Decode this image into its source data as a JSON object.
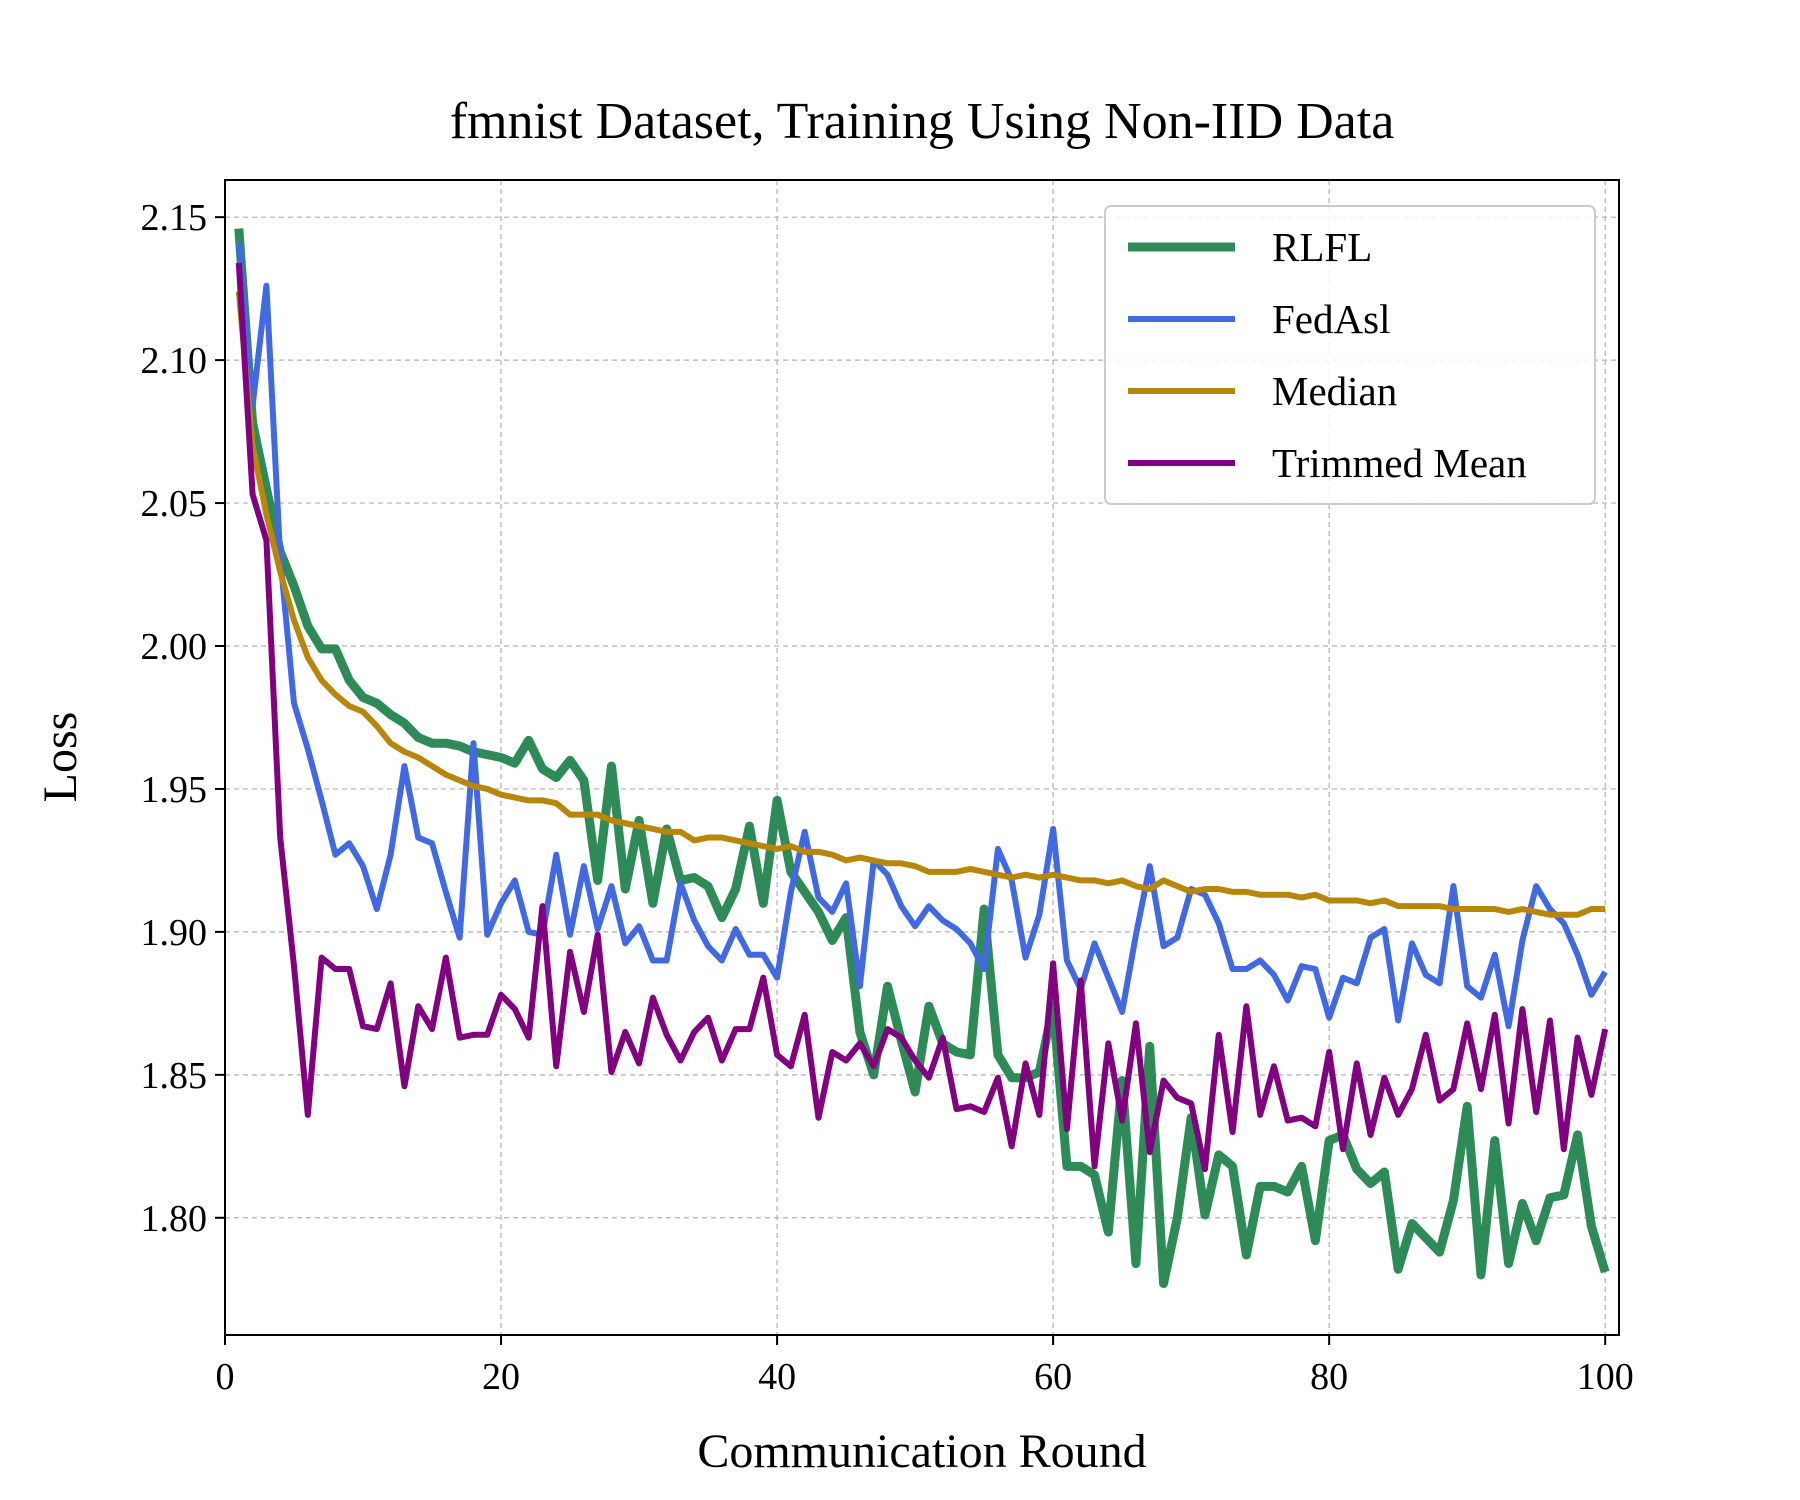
{
  "chart_data": {
    "type": "line",
    "title": "fmnist Dataset, Training Using Non-IID Data",
    "xlabel": "Communication Round",
    "ylabel": "Loss",
    "xlim": [
      0,
      101
    ],
    "ylim": [
      1.759,
      2.163
    ],
    "xticks": [
      0,
      20,
      40,
      60,
      80,
      100
    ],
    "yticks": [
      1.8,
      1.85,
      1.9,
      1.95,
      2.0,
      2.05,
      2.1,
      2.15
    ],
    "xtick_labels": [
      "0",
      "20",
      "40",
      "60",
      "80",
      "100"
    ],
    "ytick_labels": [
      "1.80",
      "1.85",
      "1.90",
      "1.95",
      "2.00",
      "2.05",
      "2.10",
      "2.15"
    ],
    "grid": true,
    "legend_position": "upper right",
    "x": [
      1,
      2,
      3,
      4,
      5,
      6,
      7,
      8,
      9,
      10,
      11,
      12,
      13,
      14,
      15,
      16,
      17,
      18,
      19,
      20,
      21,
      22,
      23,
      24,
      25,
      26,
      27,
      28,
      29,
      30,
      31,
      32,
      33,
      34,
      35,
      36,
      37,
      38,
      39,
      40,
      41,
      42,
      43,
      44,
      45,
      46,
      47,
      48,
      49,
      50,
      51,
      52,
      53,
      54,
      55,
      56,
      57,
      58,
      59,
      60,
      61,
      62,
      63,
      64,
      65,
      66,
      67,
      68,
      69,
      70,
      71,
      72,
      73,
      74,
      75,
      76,
      77,
      78,
      79,
      80,
      81,
      82,
      83,
      84,
      85,
      86,
      87,
      88,
      89,
      90,
      91,
      92,
      93,
      94,
      95,
      96,
      97,
      98,
      99,
      100
    ],
    "series": [
      {
        "name": "RLFL",
        "color": "#2e8b57",
        "width": 9,
        "values": [
          2.146,
          2.078,
          2.055,
          2.033,
          2.021,
          2.007,
          1.999,
          1.999,
          1.988,
          1.982,
          1.98,
          1.976,
          1.973,
          1.968,
          1.966,
          1.966,
          1.965,
          1.963,
          1.962,
          1.961,
          1.959,
          1.967,
          1.957,
          1.954,
          1.96,
          1.953,
          1.918,
          1.958,
          1.915,
          1.939,
          1.91,
          1.936,
          1.918,
          1.919,
          1.916,
          1.905,
          1.915,
          1.937,
          1.91,
          1.946,
          1.921,
          1.914,
          1.907,
          1.897,
          1.905,
          1.865,
          1.85,
          1.881,
          1.862,
          1.844,
          1.874,
          1.861,
          1.858,
          1.857,
          1.908,
          1.857,
          1.849,
          1.849,
          1.851,
          1.874,
          1.818,
          1.818,
          1.815,
          1.795,
          1.848,
          1.784,
          1.86,
          1.777,
          1.8,
          1.835,
          1.801,
          1.822,
          1.818,
          1.787,
          1.811,
          1.811,
          1.809,
          1.818,
          1.792,
          1.827,
          1.829,
          1.817,
          1.812,
          1.816,
          1.782,
          1.798,
          1.793,
          1.788,
          1.806,
          1.839,
          1.78,
          1.827,
          1.784,
          1.805,
          1.792,
          1.807,
          1.808,
          1.829,
          1.797,
          1.781
        ]
      },
      {
        "name": "FedAsl",
        "color": "#4169e1",
        "width": 6,
        "values": [
          2.141,
          2.084,
          2.126,
          2.031,
          1.98,
          1.964,
          1.946,
          1.927,
          1.931,
          1.923,
          1.908,
          1.927,
          1.958,
          1.933,
          1.931,
          1.914,
          1.898,
          1.966,
          1.899,
          1.91,
          1.918,
          1.9,
          1.899,
          1.927,
          1.899,
          1.923,
          1.901,
          1.916,
          1.896,
          1.902,
          1.89,
          1.89,
          1.917,
          1.904,
          1.895,
          1.89,
          1.901,
          1.892,
          1.892,
          1.884,
          1.914,
          1.935,
          1.912,
          1.907,
          1.917,
          1.881,
          1.925,
          1.92,
          1.909,
          1.902,
          1.909,
          1.904,
          1.901,
          1.896,
          1.887,
          1.929,
          1.918,
          1.891,
          1.906,
          1.936,
          1.89,
          1.88,
          1.896,
          1.884,
          1.872,
          1.899,
          1.923,
          1.895,
          1.898,
          1.915,
          1.913,
          1.903,
          1.887,
          1.887,
          1.89,
          1.885,
          1.876,
          1.888,
          1.887,
          1.87,
          1.884,
          1.882,
          1.898,
          1.901,
          1.869,
          1.896,
          1.885,
          1.882,
          1.916,
          1.881,
          1.877,
          1.892,
          1.867,
          1.897,
          1.916,
          1.908,
          1.903,
          1.892,
          1.878,
          1.886
        ]
      },
      {
        "name": "Median",
        "color": "#b8860b",
        "width": 6,
        "values": [
          2.124,
          2.07,
          2.046,
          2.026,
          2.009,
          1.996,
          1.988,
          1.983,
          1.979,
          1.977,
          1.972,
          1.966,
          1.963,
          1.961,
          1.958,
          1.955,
          1.953,
          1.951,
          1.95,
          1.948,
          1.947,
          1.946,
          1.946,
          1.945,
          1.941,
          1.941,
          1.941,
          1.939,
          1.938,
          1.937,
          1.936,
          1.935,
          1.935,
          1.932,
          1.933,
          1.933,
          1.932,
          1.931,
          1.93,
          1.929,
          1.93,
          1.928,
          1.928,
          1.927,
          1.925,
          1.926,
          1.925,
          1.924,
          1.924,
          1.923,
          1.921,
          1.921,
          1.921,
          1.922,
          1.921,
          1.92,
          1.919,
          1.92,
          1.919,
          1.92,
          1.919,
          1.918,
          1.918,
          1.917,
          1.918,
          1.916,
          1.915,
          1.918,
          1.916,
          1.914,
          1.915,
          1.915,
          1.914,
          1.914,
          1.913,
          1.913,
          1.913,
          1.912,
          1.913,
          1.911,
          1.911,
          1.911,
          1.91,
          1.911,
          1.909,
          1.909,
          1.909,
          1.909,
          1.908,
          1.908,
          1.908,
          1.908,
          1.907,
          1.908,
          1.907,
          1.906,
          1.906,
          1.906,
          1.908,
          1.908
        ]
      },
      {
        "name": "Trimmed Mean",
        "color": "#800080",
        "width": 6,
        "values": [
          2.134,
          2.053,
          2.037,
          1.933,
          1.888,
          1.836,
          1.891,
          1.887,
          1.887,
          1.867,
          1.866,
          1.882,
          1.846,
          1.874,
          1.866,
          1.891,
          1.863,
          1.864,
          1.864,
          1.878,
          1.873,
          1.863,
          1.909,
          1.853,
          1.893,
          1.872,
          1.899,
          1.851,
          1.865,
          1.854,
          1.877,
          1.864,
          1.855,
          1.865,
          1.87,
          1.855,
          1.866,
          1.866,
          1.884,
          1.857,
          1.853,
          1.871,
          1.835,
          1.858,
          1.855,
          1.861,
          1.853,
          1.866,
          1.863,
          1.855,
          1.849,
          1.863,
          1.838,
          1.839,
          1.837,
          1.849,
          1.825,
          1.854,
          1.836,
          1.889,
          1.831,
          1.883,
          1.818,
          1.861,
          1.834,
          1.868,
          1.823,
          1.848,
          1.842,
          1.84,
          1.817,
          1.864,
          1.83,
          1.874,
          1.836,
          1.853,
          1.834,
          1.835,
          1.832,
          1.858,
          1.824,
          1.854,
          1.829,
          1.849,
          1.836,
          1.845,
          1.864,
          1.841,
          1.845,
          1.868,
          1.845,
          1.871,
          1.833,
          1.873,
          1.837,
          1.869,
          1.824,
          1.863,
          1.843,
          1.866
        ]
      }
    ]
  }
}
